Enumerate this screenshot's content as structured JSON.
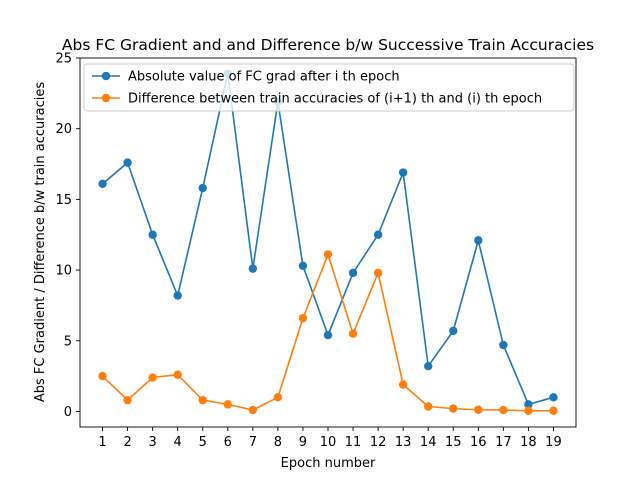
{
  "chart_data": {
    "type": "line",
    "title": "Abs FC Gradient and and Difference b/w Successive Train Accuracies",
    "xlabel": "Epoch number",
    "ylabel": "Abs FC Gradient / Difference b/w train accuracies",
    "x": [
      1,
      2,
      3,
      4,
      5,
      6,
      7,
      8,
      9,
      10,
      11,
      12,
      13,
      14,
      15,
      16,
      17,
      18,
      19
    ],
    "xticks": [
      "1",
      "2",
      "3",
      "4",
      "5",
      "6",
      "7",
      "8",
      "9",
      "10",
      "11",
      "12",
      "13",
      "14",
      "15",
      "16",
      "17",
      "18",
      "19"
    ],
    "ylim": [
      -1.1,
      25
    ],
    "yticks": [
      "0",
      "5",
      "10",
      "15",
      "20",
      "25"
    ],
    "grid": false,
    "legend_position": "top-left",
    "series": [
      {
        "name": "Absolute value of FC grad after i th epoch",
        "color": "#1f77b4",
        "values": [
          16.1,
          17.6,
          12.5,
          8.2,
          15.8,
          23.9,
          10.1,
          21.9,
          10.3,
          5.4,
          9.8,
          12.5,
          16.9,
          3.2,
          5.7,
          12.1,
          4.7,
          0.5,
          1.0
        ]
      },
      {
        "name": "Difference between train accuracies of (i+1) th and (i) th epoch",
        "color": "#ff7f0e",
        "values": [
          2.5,
          0.8,
          2.4,
          2.6,
          0.8,
          0.5,
          0.1,
          1.0,
          6.6,
          11.1,
          5.5,
          9.8,
          1.9,
          0.35,
          0.2,
          0.12,
          0.1,
          0.05,
          0.05
        ]
      }
    ]
  }
}
